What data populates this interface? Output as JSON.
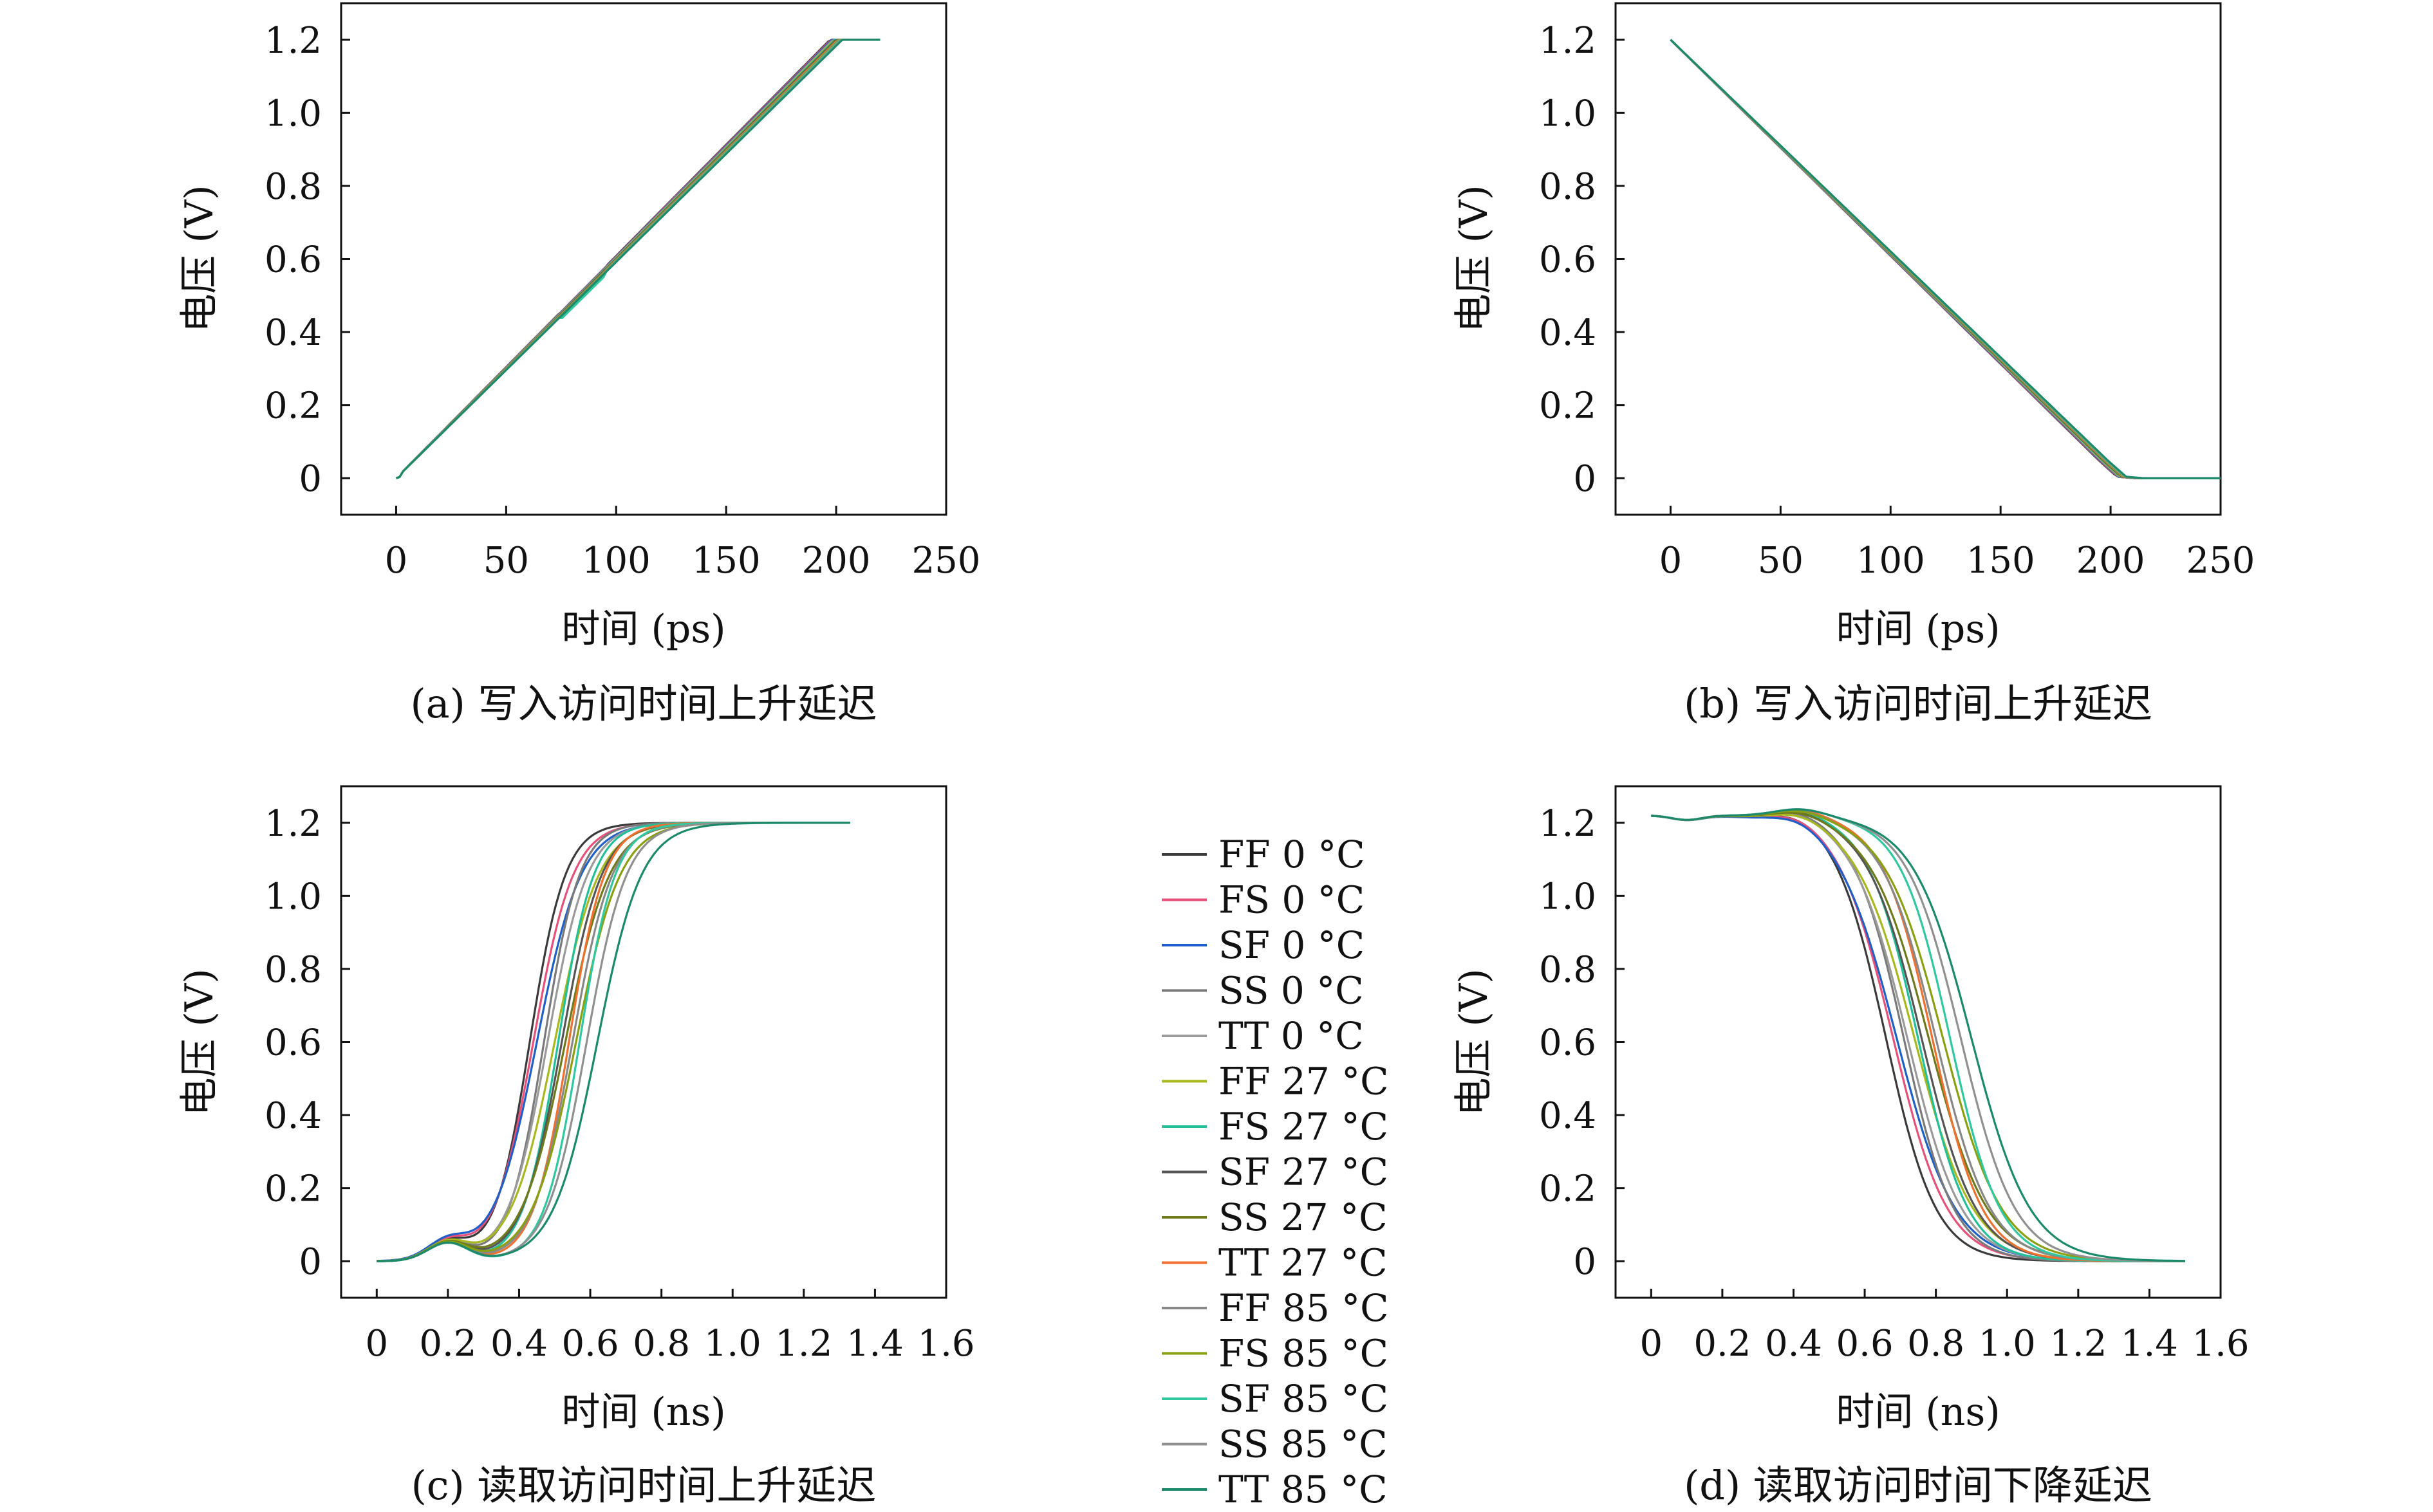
{
  "legend": [
    {
      "label": "FF 0 °C",
      "color": "#3a3a3a"
    },
    {
      "label": "FS 0 °C",
      "color": "#e8507a"
    },
    {
      "label": "SF 0 °C",
      "color": "#1f5fc8"
    },
    {
      "label": "SS 0 °C",
      "color": "#7a7a7a"
    },
    {
      "label": "TT 0 °C",
      "color": "#9a9a9a"
    },
    {
      "label": "FF 27 °C",
      "color": "#a8b81e"
    },
    {
      "label": "FS 27 °C",
      "color": "#22c09a"
    },
    {
      "label": "SF 27 °C",
      "color": "#555555"
    },
    {
      "label": "SS 27 °C",
      "color": "#6f7a1a"
    },
    {
      "label": "TT 27 °C",
      "color": "#f07030"
    },
    {
      "label": "FF 85 °C",
      "color": "#888888"
    },
    {
      "label": "FS 85 °C",
      "color": "#8aa010"
    },
    {
      "label": "SF 85 °C",
      "color": "#30c8a0"
    },
    {
      "label": "SS 85 °C",
      "color": "#909090"
    },
    {
      "label": "TT 85 °C",
      "color": "#1a8a6a"
    }
  ],
  "chart_data": [
    {
      "type": "line",
      "caption": "(a) 写入访问时间上升延迟",
      "xlabel": "时间 (ps)",
      "ylabel": "电压 (V)",
      "xlim": [
        -25,
        250
      ],
      "ylim": [
        -0.1,
        1.3
      ],
      "xticks": [
        "0",
        "50",
        "100",
        "150",
        "200",
        "250"
      ],
      "xtick_values": [
        0,
        50,
        100,
        150,
        200,
        250
      ],
      "yticks": [
        "0",
        "0.2",
        "0.4",
        "0.6",
        "0.8",
        "1.0",
        "1.2"
      ],
      "ytick_values": [
        0,
        0.2,
        0.4,
        0.6,
        0.8,
        1.0,
        1.2
      ],
      "grid": false,
      "curve": {
        "kind": "ramp-rise",
        "start": 0,
        "end": 200,
        "tail": 220,
        "v0": 0,
        "v1": 1.2
      },
      "series_note": "15 nearly overlapping curves (one per process corner / temperature)"
    },
    {
      "type": "line",
      "caption": "(b) 写入访问时间上升延迟",
      "xlabel": "时间 (ps)",
      "ylabel": "电压 (V)",
      "xlim": [
        -25,
        250
      ],
      "ylim": [
        -0.1,
        1.3
      ],
      "xticks": [
        "0",
        "50",
        "100",
        "150",
        "200",
        "250"
      ],
      "xtick_values": [
        0,
        50,
        100,
        150,
        200,
        250
      ],
      "yticks": [
        "0",
        "0.2",
        "0.4",
        "0.6",
        "0.8",
        "1.0",
        "1.2"
      ],
      "ytick_values": [
        0,
        0.2,
        0.4,
        0.6,
        0.8,
        1.0,
        1.2
      ],
      "grid": false,
      "curve": {
        "kind": "ramp-fall",
        "start": 0,
        "end": 205,
        "tail": 250,
        "v0": 1.2,
        "v1": 0
      },
      "series_note": "15 nearly overlapping curves"
    },
    {
      "type": "line",
      "caption": "(c) 读取访问时间上升延迟",
      "xlabel": "时间 (ns)",
      "ylabel": "电压 (V)",
      "xlim": [
        -0.1,
        1.6
      ],
      "ylim": [
        -0.1,
        1.3
      ],
      "xticks": [
        "0",
        "0.2",
        "0.4",
        "0.6",
        "0.8",
        "1.0",
        "1.2",
        "1.4",
        "1.6"
      ],
      "xtick_values": [
        0,
        0.2,
        0.4,
        0.6,
        0.8,
        1.0,
        1.2,
        1.4,
        1.6
      ],
      "yticks": [
        "0",
        "0.2",
        "0.4",
        "0.6",
        "0.8",
        "1.0",
        "1.2"
      ],
      "ytick_values": [
        0,
        0.2,
        0.4,
        0.6,
        0.8,
        1.0,
        1.2
      ],
      "grid": false,
      "curve": {
        "kind": "sigmoid-rise",
        "v0": 0,
        "v1": 1.2,
        "end": 1.33,
        "midpoints": [
          0.43,
          0.44,
          0.45,
          0.47,
          0.48,
          0.5,
          0.51,
          0.52,
          0.53,
          0.54,
          0.55,
          0.56,
          0.57,
          0.59,
          0.62
        ],
        "bump": {
          "at": 0.2,
          "height": 0.05
        }
      }
    },
    {
      "type": "line",
      "caption": "(d) 读取访问时间下降延迟",
      "xlabel": "时间 (ns)",
      "ylabel": "电压 (V)",
      "xlim": [
        -0.1,
        1.6
      ],
      "ylim": [
        -0.1,
        1.3
      ],
      "xticks": [
        "0",
        "0.2",
        "0.4",
        "0.6",
        "0.8",
        "1.0",
        "1.2",
        "1.4",
        "1.6"
      ],
      "xtick_values": [
        0,
        0.2,
        0.4,
        0.6,
        0.8,
        1.0,
        1.2,
        1.4,
        1.6
      ],
      "yticks": [
        "0",
        "0.2",
        "0.4",
        "0.6",
        "0.8",
        "1.0",
        "1.2"
      ],
      "ytick_values": [
        0,
        0.2,
        0.4,
        0.6,
        0.8,
        1.0,
        1.2
      ],
      "grid": false,
      "curve": {
        "kind": "sigmoid-fall",
        "v0": 1.22,
        "v1": 0,
        "end": 1.5,
        "midpoints": [
          0.66,
          0.68,
          0.69,
          0.71,
          0.72,
          0.74,
          0.75,
          0.76,
          0.78,
          0.79,
          0.8,
          0.82,
          0.84,
          0.87,
          0.9
        ]
      }
    }
  ]
}
